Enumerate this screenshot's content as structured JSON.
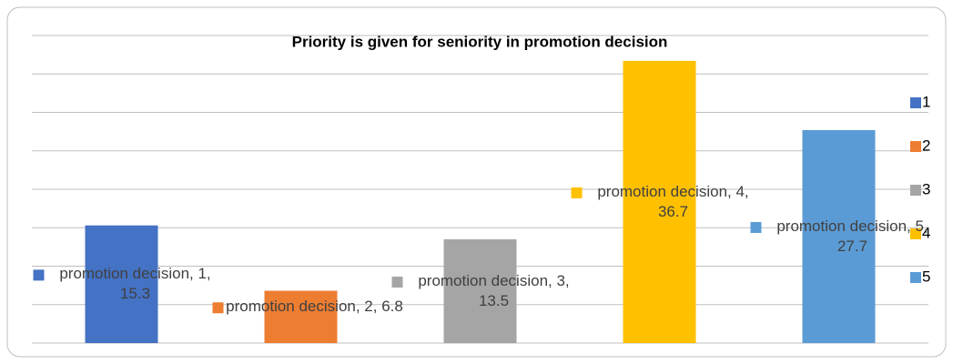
{
  "chart_data": {
    "type": "bar",
    "title": "Priority is given for seniority in promotion decision",
    "categories": [
      "promotion decision"
    ],
    "series": [
      {
        "name": "1",
        "color": "#4472c4",
        "values": [
          15.3
        ],
        "value_labels": [
          "promotion decision, 1, 15.3"
        ]
      },
      {
        "name": "2",
        "color": "#ed7d31",
        "values": [
          6.8
        ],
        "value_labels": [
          "promotion decision, 2, 6.8"
        ]
      },
      {
        "name": "3",
        "color": "#a5a5a5",
        "values": [
          13.5
        ],
        "value_labels": [
          "promotion decision, 3, 13.5"
        ]
      },
      {
        "name": "4",
        "color": "#ffc000",
        "values": [
          36.7
        ],
        "value_labels": [
          "promotion decision, 4, 36.7"
        ]
      },
      {
        "name": "5",
        "color": "#5b9bd5",
        "values": [
          27.7
        ],
        "value_labels": [
          "promotion decision, 5, 27.7"
        ]
      }
    ],
    "ylim": [
      0,
      40
    ],
    "yticks": [
      0,
      5,
      10,
      15,
      20,
      25,
      30,
      35,
      40
    ],
    "grid": true,
    "legend": "right"
  }
}
